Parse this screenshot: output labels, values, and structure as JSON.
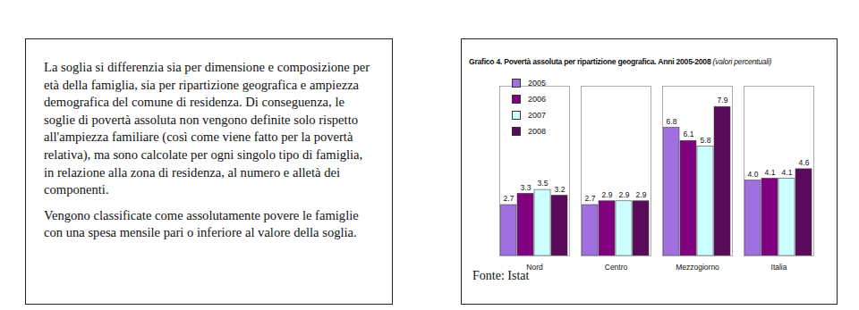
{
  "document": {
    "paragraphs": [
      "La soglia si differenzia sia per dimensione e composizione per età della famiglia, sia per ripartizione geografica e ampiezza demografica del comune di residenza. Di conseguenza, le soglie di povertà assoluta non vengono definite solo rispetto all'ampiezza familiare (così come viene fatto per la povertà relativa), ma sono calcolate per ogni singolo tipo di famiglia, in relazione alla zona di residenza, al numero e alletà dei componenti.",
      "Vengono classificate come assolutamente povere le famiglie con una spesa mensile pari o inferiore al valore della soglia."
    ],
    "source": "Fonte: Istat"
  },
  "chart_data": {
    "type": "bar",
    "title": "Grafico 4.  Povertà assoluta per ripartizione geografica. Anni 2005-2008",
    "subtitle": "(valori percentuali)",
    "categories": [
      "Nord",
      "Centro",
      "Mezzogiorno",
      "Italia"
    ],
    "series": [
      {
        "name": "2005",
        "color": "#a070e0",
        "values": [
          2.7,
          2.7,
          6.8,
          4.0
        ],
        "value_labels": [
          "2.7",
          "2.7",
          "6.8",
          "4.0"
        ]
      },
      {
        "name": "2006",
        "color": "#800080",
        "values": [
          3.3,
          2.9,
          6.1,
          4.1
        ],
        "value_labels": [
          "3.3",
          "2.9",
          "6.1",
          "4.1"
        ]
      },
      {
        "name": "2007",
        "color": "#ccffff",
        "values": [
          3.5,
          2.9,
          5.8,
          4.1
        ],
        "value_labels": [
          "3.5",
          "2.9",
          "5.8",
          "4.1"
        ]
      },
      {
        "name": "2008",
        "color": "#5a0a5a",
        "values": [
          3.2,
          2.9,
          7.9,
          4.6
        ],
        "value_labels": [
          "3.2",
          "2.9",
          "7.9",
          "4.6"
        ]
      }
    ],
    "ylim": [
      0,
      9
    ],
    "yticks": [],
    "data_labels": true,
    "tick_labels": "x",
    "legend": "upper-left"
  }
}
